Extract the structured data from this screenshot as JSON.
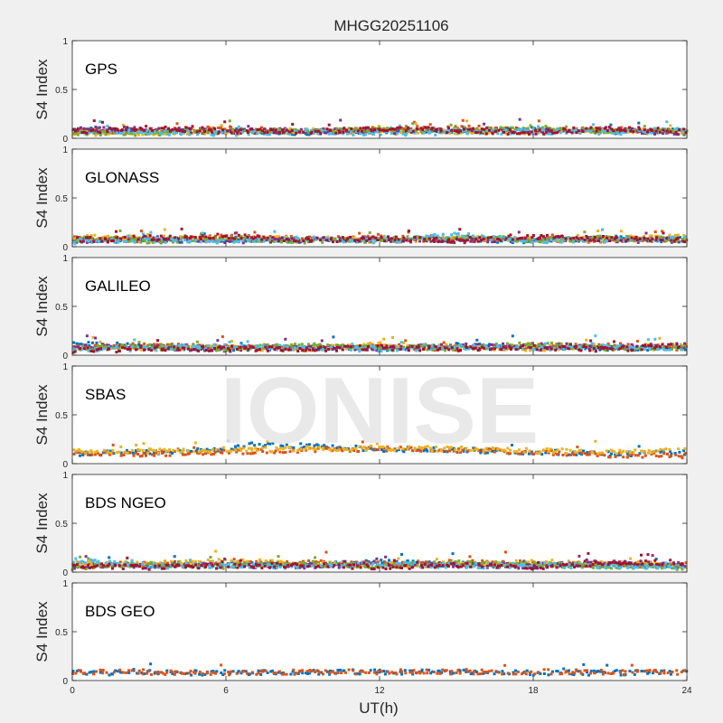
{
  "figure": {
    "title": "MHGG20251106",
    "watermark": "IONISE",
    "xlabel": "UT(h)",
    "xticks": [
      0,
      6,
      12,
      18,
      24
    ],
    "background": "#f0f0f0",
    "axes_background": "#ffffff",
    "watermark_color": "#e6e6e6"
  },
  "palette": [
    "#0072BD",
    "#D95319",
    "#EDB120",
    "#7E2F8E",
    "#77AC30",
    "#4DBEEE",
    "#A2142F"
  ],
  "chart_data": [
    {
      "type": "scatter",
      "label": "GPS",
      "ylabel": "S4 Index",
      "xlim": [
        0,
        24
      ],
      "ylim": [
        0,
        1
      ],
      "yticks": [
        0,
        0.5,
        1
      ],
      "series": [
        {
          "color": "#0072BD",
          "x": [
            0,
            3,
            6,
            9,
            12,
            15,
            18,
            21,
            24
          ],
          "y": [
            0.09,
            0.07,
            0.08,
            0.06,
            0.08,
            0.07,
            0.09,
            0.07,
            0.08
          ]
        },
        {
          "color": "#D95319",
          "x": [
            0,
            3,
            6,
            9,
            12,
            15,
            18,
            21,
            24
          ],
          "y": [
            0.07,
            0.08,
            0.1,
            0.07,
            0.09,
            0.11,
            0.08,
            0.09,
            0.06
          ]
        },
        {
          "color": "#EDB120",
          "x": [
            0,
            3,
            6,
            9,
            12,
            15,
            18,
            21,
            24
          ],
          "y": [
            0.05,
            0.06,
            0.06,
            0.08,
            0.06,
            0.07,
            0.06,
            0.08,
            0.06
          ]
        },
        {
          "color": "#7E2F8E",
          "x": [
            0,
            3,
            6,
            9,
            12,
            15,
            18,
            21,
            24
          ],
          "y": [
            0.1,
            0.09,
            0.07,
            0.08,
            0.07,
            0.09,
            0.08,
            0.09,
            0.05
          ]
        },
        {
          "color": "#77AC30",
          "x": [
            0,
            3,
            6,
            9,
            12,
            15,
            18,
            21,
            24
          ],
          "y": [
            0.06,
            0.05,
            0.08,
            0.07,
            0.09,
            0.08,
            0.11,
            0.07,
            0.07
          ]
        },
        {
          "color": "#4DBEEE",
          "x": [
            0,
            3,
            6,
            9,
            12,
            15,
            18,
            21,
            24
          ],
          "y": [
            0.08,
            0.06,
            0.05,
            0.07,
            0.05,
            0.06,
            0.07,
            0.06,
            0.09
          ]
        },
        {
          "color": "#A2142F",
          "x": [
            0,
            3,
            6,
            9,
            12,
            15,
            18,
            21,
            24
          ],
          "y": [
            0.07,
            0.1,
            0.08,
            0.06,
            0.1,
            0.08,
            0.06,
            0.1,
            0.07
          ]
        }
      ]
    },
    {
      "type": "scatter",
      "label": "GLONASS",
      "ylabel": "S4 Index",
      "xlim": [
        0,
        24
      ],
      "ylim": [
        0,
        1
      ],
      "yticks": [
        0,
        0.5,
        1
      ],
      "series": [
        {
          "color": "#0072BD",
          "x": [
            0,
            3,
            6,
            9,
            12,
            15,
            18,
            21,
            24
          ],
          "y": [
            0.07,
            0.06,
            0.08,
            0.06,
            0.07,
            0.08,
            0.06,
            0.09,
            0.06
          ]
        },
        {
          "color": "#D95319",
          "x": [
            0,
            3,
            6,
            9,
            12,
            15,
            18,
            21,
            24
          ],
          "y": [
            0.09,
            0.07,
            0.1,
            0.08,
            0.09,
            0.07,
            0.08,
            0.06,
            0.08
          ]
        },
        {
          "color": "#EDB120",
          "x": [
            0,
            3,
            6,
            9,
            12,
            15,
            18,
            21,
            24
          ],
          "y": [
            0.1,
            0.09,
            0.07,
            0.09,
            0.06,
            0.09,
            0.07,
            0.08,
            0.1
          ]
        },
        {
          "color": "#7E2F8E",
          "x": [
            0,
            3,
            6,
            9,
            12,
            15,
            18,
            21,
            24
          ],
          "y": [
            0.06,
            0.08,
            0.06,
            0.07,
            0.08,
            0.06,
            0.09,
            0.07,
            0.06
          ]
        },
        {
          "color": "#77AC30",
          "x": [
            0,
            3,
            6,
            9,
            12,
            15,
            18,
            21,
            24
          ],
          "y": [
            0.08,
            0.06,
            0.09,
            0.06,
            0.07,
            0.1,
            0.07,
            0.09,
            0.07
          ]
        },
        {
          "color": "#4DBEEE",
          "x": [
            0,
            3,
            6,
            9,
            12,
            15,
            18,
            21,
            24
          ],
          "y": [
            0.05,
            0.07,
            0.06,
            0.08,
            0.06,
            0.12,
            0.06,
            0.07,
            0.08
          ]
        },
        {
          "color": "#A2142F",
          "x": [
            0,
            3,
            6,
            9,
            12,
            15,
            18,
            21,
            24
          ],
          "y": [
            0.07,
            0.09,
            0.11,
            0.07,
            0.08,
            0.07,
            0.1,
            0.08,
            0.07
          ]
        }
      ]
    },
    {
      "type": "scatter",
      "label": "GALILEO",
      "ylabel": "S4 Index",
      "xlim": [
        0,
        24
      ],
      "ylim": [
        0,
        1
      ],
      "yticks": [
        0,
        0.5,
        1
      ],
      "series": [
        {
          "color": "#0072BD",
          "x": [
            0,
            3,
            6,
            9,
            12,
            15,
            18,
            21,
            24
          ],
          "y": [
            0.12,
            0.09,
            0.07,
            0.08,
            0.07,
            0.1,
            0.08,
            0.07,
            0.08
          ]
        },
        {
          "color": "#D95319",
          "x": [
            0,
            3,
            6,
            9,
            12,
            15,
            18,
            21,
            24
          ],
          "y": [
            0.08,
            0.1,
            0.09,
            0.07,
            0.09,
            0.07,
            0.09,
            0.1,
            0.07
          ]
        },
        {
          "color": "#EDB120",
          "x": [
            0,
            3,
            6,
            9,
            12,
            15,
            18,
            21,
            24
          ],
          "y": [
            0.09,
            0.07,
            0.08,
            0.06,
            0.11,
            0.08,
            0.07,
            0.08,
            0.09
          ]
        },
        {
          "color": "#7E2F8E",
          "x": [
            0,
            3,
            6,
            9,
            12,
            15,
            18,
            21,
            24
          ],
          "y": [
            0.1,
            0.08,
            0.06,
            0.09,
            0.07,
            0.09,
            0.1,
            0.08,
            0.1
          ]
        },
        {
          "color": "#77AC30",
          "x": [
            0,
            3,
            6,
            9,
            12,
            15,
            18,
            21,
            24
          ],
          "y": [
            0.07,
            0.09,
            0.07,
            0.1,
            0.08,
            0.07,
            0.11,
            0.07,
            0.08
          ]
        },
        {
          "color": "#4DBEEE",
          "x": [
            0,
            3,
            6,
            9,
            12,
            15,
            18,
            21,
            24
          ],
          "y": [
            0.06,
            0.07,
            0.09,
            0.07,
            0.06,
            0.08,
            0.07,
            0.09,
            0.07
          ]
        },
        {
          "color": "#A2142F",
          "x": [
            0,
            3,
            6,
            9,
            12,
            15,
            18,
            21,
            24
          ],
          "y": [
            0.05,
            0.06,
            0.07,
            0.06,
            0.08,
            0.06,
            0.08,
            0.06,
            0.1
          ]
        }
      ]
    },
    {
      "type": "scatter",
      "label": "SBAS",
      "ylabel": "S4 Index",
      "xlim": [
        0,
        24
      ],
      "ylim": [
        0,
        1
      ],
      "yticks": [
        0,
        0.5,
        1
      ],
      "series": [
        {
          "color": "#0072BD",
          "x": [
            0,
            3,
            6,
            7,
            9,
            12,
            15,
            18,
            21,
            24
          ],
          "y": [
            0.1,
            0.12,
            0.15,
            0.2,
            0.18,
            0.15,
            0.14,
            0.12,
            0.1,
            0.11
          ]
        },
        {
          "color": "#D95319",
          "x": [
            0,
            3,
            6,
            9,
            12,
            15,
            18,
            21,
            24
          ],
          "y": [
            0.09,
            0.1,
            0.12,
            0.14,
            0.15,
            0.14,
            0.12,
            0.09,
            0.08
          ]
        },
        {
          "color": "#EDB120",
          "x": [
            0,
            3,
            6,
            9,
            12,
            15,
            18,
            21,
            24
          ],
          "y": [
            0.12,
            0.13,
            0.14,
            0.15,
            0.16,
            0.15,
            0.13,
            0.12,
            0.13
          ]
        }
      ]
    },
    {
      "type": "scatter",
      "label": "BDS NGEO",
      "ylabel": "S4 Index",
      "xlim": [
        0,
        24
      ],
      "ylim": [
        0,
        1
      ],
      "yticks": [
        0,
        0.5,
        1
      ],
      "series": [
        {
          "color": "#0072BD",
          "x": [
            0,
            3,
            6,
            9,
            12,
            15,
            18,
            21,
            24
          ],
          "y": [
            0.08,
            0.07,
            0.09,
            0.07,
            0.1,
            0.08,
            0.07,
            0.08,
            0.06
          ]
        },
        {
          "color": "#D95319",
          "x": [
            0,
            3,
            6,
            9,
            12,
            15,
            18,
            21,
            24
          ],
          "y": [
            0.07,
            0.09,
            0.08,
            0.1,
            0.08,
            0.1,
            0.09,
            0.07,
            0.08
          ]
        },
        {
          "color": "#EDB120",
          "x": [
            0,
            3,
            6,
            9,
            12,
            15,
            18,
            21,
            24
          ],
          "y": [
            0.1,
            0.08,
            0.12,
            0.08,
            0.07,
            0.08,
            0.1,
            0.09,
            0.07
          ]
        },
        {
          "color": "#7E2F8E",
          "x": [
            0,
            3,
            6,
            9,
            12,
            15,
            18,
            21,
            24
          ],
          "y": [
            0.06,
            0.07,
            0.07,
            0.06,
            0.08,
            0.07,
            0.06,
            0.1,
            0.07
          ]
        },
        {
          "color": "#77AC30",
          "x": [
            0,
            3,
            6,
            9,
            12,
            15,
            18,
            21,
            24
          ],
          "y": [
            0.05,
            0.08,
            0.06,
            0.09,
            0.06,
            0.09,
            0.08,
            0.06,
            0.05
          ]
        },
        {
          "color": "#4DBEEE",
          "x": [
            0,
            3,
            6,
            9,
            12,
            15,
            18,
            21,
            24
          ],
          "y": [
            0.12,
            0.06,
            0.07,
            0.05,
            0.09,
            0.06,
            0.07,
            0.06,
            0.06
          ]
        },
        {
          "color": "#A2142F",
          "x": [
            0,
            3,
            6,
            9,
            12,
            15,
            18,
            21,
            24
          ],
          "y": [
            0.07,
            0.05,
            0.06,
            0.07,
            0.05,
            0.07,
            0.05,
            0.09,
            0.1
          ]
        }
      ]
    },
    {
      "type": "scatter",
      "label": "BDS GEO",
      "ylabel": "S4 Index",
      "xlim": [
        0,
        24
      ],
      "ylim": [
        0,
        1
      ],
      "yticks": [
        0,
        0.5,
        1
      ],
      "series": [
        {
          "color": "#0072BD",
          "x": [
            0,
            6,
            12,
            18,
            24
          ],
          "y": [
            0.08,
            0.08,
            0.09,
            0.08,
            0.08
          ]
        },
        {
          "color": "#D95319",
          "x": [
            0,
            6,
            12,
            18,
            24
          ],
          "y": [
            0.09,
            0.08,
            0.09,
            0.09,
            0.08
          ]
        }
      ]
    }
  ]
}
